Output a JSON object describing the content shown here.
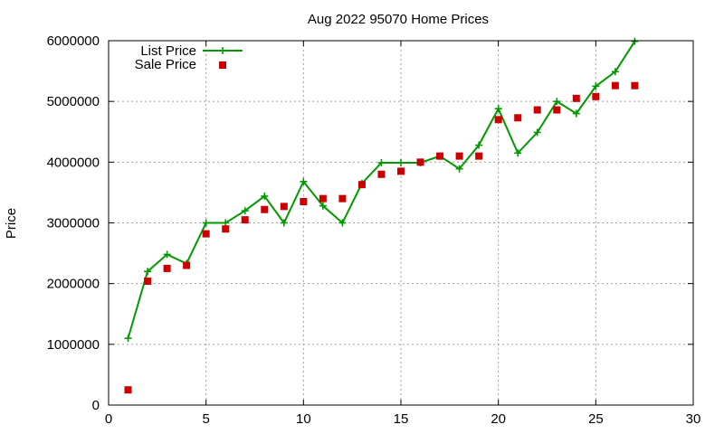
{
  "chart_data": {
    "type": "line",
    "title": "Aug 2022 95070 Home Prices",
    "xlabel": "",
    "ylabel": "Price",
    "xlim": [
      0,
      30
    ],
    "ylim": [
      0,
      6000000
    ],
    "xticks": [
      0,
      5,
      10,
      15,
      20,
      25,
      30
    ],
    "yticks": [
      0,
      1000000,
      2000000,
      3000000,
      4000000,
      5000000,
      6000000
    ],
    "grid": true,
    "legend_position": "top-left",
    "series": [
      {
        "name": "List Price",
        "style": "line-with-plus-markers",
        "color": "#009900",
        "points": [
          [
            1,
            1100000
          ],
          [
            2,
            2200000
          ],
          [
            3,
            2480000
          ],
          [
            4,
            2330000
          ],
          [
            5,
            3000000
          ],
          [
            6,
            3000000
          ],
          [
            7,
            3200000
          ],
          [
            8,
            3440000
          ],
          [
            9,
            3000000
          ],
          [
            10,
            3680000
          ],
          [
            11,
            3280000
          ],
          [
            12,
            3000000
          ],
          [
            13,
            3650000
          ],
          [
            14,
            3990000
          ],
          [
            15,
            3990000
          ],
          [
            16,
            3990000
          ],
          [
            17,
            4100000
          ],
          [
            18,
            3890000
          ],
          [
            19,
            4280000
          ],
          [
            20,
            4880000
          ],
          [
            21,
            4150000
          ],
          [
            22,
            4490000
          ],
          [
            23,
            5000000
          ],
          [
            24,
            4800000
          ],
          [
            25,
            5250000
          ],
          [
            26,
            5490000
          ],
          [
            27,
            5990000
          ]
        ]
      },
      {
        "name": "Sale Price",
        "style": "square-markers",
        "color": "#cc0000",
        "points": [
          [
            1,
            250000
          ],
          [
            2,
            2040000
          ],
          [
            3,
            2250000
          ],
          [
            4,
            2300000
          ],
          [
            5,
            2820000
          ],
          [
            6,
            2900000
          ],
          [
            7,
            3050000
          ],
          [
            8,
            3220000
          ],
          [
            9,
            3270000
          ],
          [
            10,
            3350000
          ],
          [
            11,
            3400000
          ],
          [
            12,
            3400000
          ],
          [
            13,
            3630000
          ],
          [
            14,
            3800000
          ],
          [
            15,
            3850000
          ],
          [
            16,
            4000000
          ],
          [
            17,
            4100000
          ],
          [
            18,
            4100000
          ],
          [
            19,
            4100000
          ],
          [
            20,
            4700000
          ],
          [
            21,
            4730000
          ],
          [
            22,
            4860000
          ],
          [
            23,
            4860000
          ],
          [
            24,
            5050000
          ],
          [
            25,
            5080000
          ],
          [
            26,
            5260000
          ],
          [
            27,
            5260000
          ]
        ]
      }
    ]
  }
}
